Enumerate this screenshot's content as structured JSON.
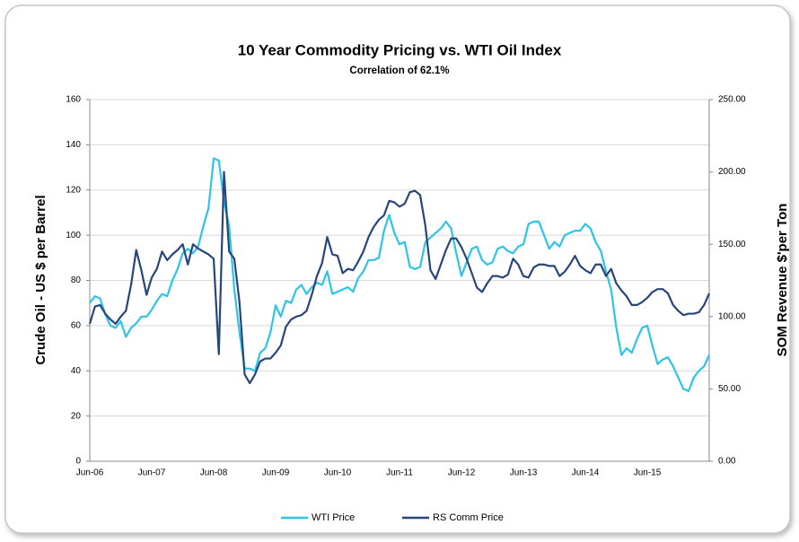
{
  "chart_data": {
    "type": "line",
    "title": "10 Year Commodity Pricing vs. WTI Oil Index",
    "subtitle": "Correlation  of 62.1%",
    "y_label": "Crude Oil - US $ per Barrel",
    "y2_label": "SOM Revenue $'per Ton",
    "categories": [
      "Jun-06",
      null,
      null,
      null,
      null,
      null,
      null,
      null,
      null,
      null,
      null,
      null,
      "Jun-07",
      null,
      null,
      null,
      null,
      null,
      null,
      null,
      null,
      null,
      null,
      null,
      "Jun-08",
      null,
      null,
      null,
      null,
      null,
      null,
      null,
      null,
      null,
      null,
      null,
      "Jun-09",
      null,
      null,
      null,
      null,
      null,
      null,
      null,
      null,
      null,
      null,
      null,
      "Jun-10",
      null,
      null,
      null,
      null,
      null,
      null,
      null,
      null,
      null,
      null,
      null,
      "Jun-11",
      null,
      null,
      null,
      null,
      null,
      null,
      null,
      null,
      null,
      null,
      null,
      "Jun-12",
      null,
      null,
      null,
      null,
      null,
      null,
      null,
      null,
      null,
      null,
      null,
      "Jun-13",
      null,
      null,
      null,
      null,
      null,
      null,
      null,
      null,
      null,
      null,
      null,
      "Jun-14",
      null,
      null,
      null,
      null,
      null,
      null,
      null,
      null,
      null,
      null,
      null,
      "Jun-15",
      null,
      null,
      null,
      null,
      null,
      null,
      null,
      null,
      null,
      null,
      null,
      null
    ],
    "series": [
      {
        "name": "WTI Price",
        "color": "#2ec4ea",
        "values": [
          70,
          73,
          72,
          65,
          60,
          59,
          62,
          55,
          59,
          61,
          64,
          64,
          67,
          71,
          74,
          73,
          80,
          85,
          92,
          94,
          92,
          95,
          104,
          112,
          134,
          133,
          115,
          104,
          76,
          57,
          41,
          41,
          40,
          48,
          50,
          57,
          69,
          64,
          71,
          70,
          76,
          78,
          74,
          77,
          79,
          78,
          84,
          74,
          75,
          76,
          77,
          75,
          81,
          84,
          89,
          89,
          90,
          102,
          109,
          101,
          96,
          97,
          86,
          85,
          86,
          97,
          99,
          101,
          103,
          106,
          103,
          92,
          82,
          88,
          94,
          95,
          89,
          87,
          88,
          94,
          95,
          93,
          92,
          95,
          96,
          105,
          106,
          106,
          100,
          94,
          97,
          95,
          100,
          101,
          102,
          102,
          105,
          103,
          97,
          93,
          84,
          76,
          59,
          47,
          50,
          48,
          54,
          59,
          60,
          51,
          43,
          45,
          46,
          42,
          37,
          32,
          31,
          37,
          40,
          42,
          47
        ]
      },
      {
        "name": "RS Comm Price",
        "color": "#27467a",
        "axis": "y2",
        "values": [
          95,
          107,
          108,
          102,
          98,
          95,
          100,
          104,
          122,
          146,
          132,
          115,
          127,
          133,
          145,
          139,
          143,
          146,
          150,
          136,
          150,
          147,
          145,
          143,
          140,
          74,
          200,
          145,
          140,
          110,
          60,
          54,
          60,
          69,
          71,
          71,
          75,
          80,
          93,
          98,
          100,
          101,
          104,
          115,
          128,
          137,
          155,
          143,
          142,
          130,
          133,
          132,
          138,
          145,
          155,
          162,
          167,
          170,
          180,
          179,
          176,
          178,
          186,
          187,
          184,
          163,
          132,
          126,
          136,
          146,
          154,
          154,
          148,
          140,
          130,
          120,
          117,
          123,
          128,
          128,
          127,
          129,
          140,
          136,
          128,
          127,
          134,
          136,
          136,
          135,
          135,
          128,
          131,
          136,
          142,
          135,
          132,
          130,
          136,
          136,
          128,
          133,
          123,
          118,
          114,
          108,
          108,
          110,
          113,
          117,
          119,
          119,
          116,
          108,
          104,
          101,
          102,
          102,
          103,
          108,
          116
        ]
      }
    ],
    "ylim": [
      0,
      160
    ],
    "yticks": [
      0,
      20,
      40,
      60,
      80,
      100,
      120,
      140,
      160
    ],
    "y2lim": [
      0,
      250
    ],
    "y2ticks": [
      {
        "value": 0,
        "label": "0.00"
      },
      {
        "value": 50,
        "label": "50.00"
      },
      {
        "value": 100,
        "label": "100.00"
      },
      {
        "value": 150,
        "label": "150.00"
      },
      {
        "value": 200,
        "label": "200.00"
      },
      {
        "value": 250,
        "label": "250.00"
      }
    ],
    "grid": true,
    "legend": "bottom"
  }
}
